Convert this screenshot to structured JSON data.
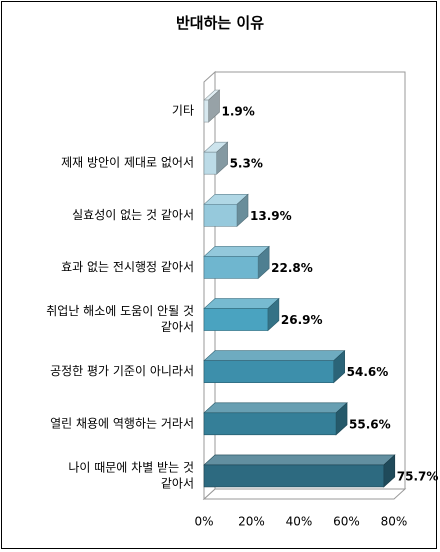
{
  "chart_data": {
    "type": "bar",
    "orientation": "horizontal",
    "title": "반대하는 이유",
    "categories": [
      [
        "기타"
      ],
      [
        "제재 방안이 제대로 없어서"
      ],
      [
        "실효성이 없는 것 같아서"
      ],
      [
        "효과 없는 전시행정 같아서"
      ],
      [
        "취업난 해소에 도움이 안될 것",
        "같아서"
      ],
      [
        "공정한 평가 기준이 아니라서"
      ],
      [
        "열린 채용에 역행하는 거라서"
      ],
      [
        "나이 때문에 차별 받는 것",
        "같아서"
      ]
    ],
    "values": [
      1.9,
      5.3,
      13.9,
      22.8,
      26.9,
      54.6,
      55.6,
      75.7
    ],
    "value_labels": [
      "1.9%",
      "5.3%",
      "13.9%",
      "22.8%",
      "26.9%",
      "54.6%",
      "55.6%",
      "75.7%"
    ],
    "bar_colors": [
      "#d7e8ef",
      "#bcdbe7",
      "#96c9dc",
      "#6fb6cf",
      "#4aa3c0",
      "#3d8fab",
      "#357f98",
      "#2d6a80"
    ],
    "xlim": [
      0,
      80
    ],
    "ticks": [
      "0%",
      "20%",
      "40%",
      "60%",
      "80%"
    ],
    "tick_values": [
      0,
      20,
      40,
      60,
      80
    ],
    "grid": false,
    "style": "3d"
  }
}
